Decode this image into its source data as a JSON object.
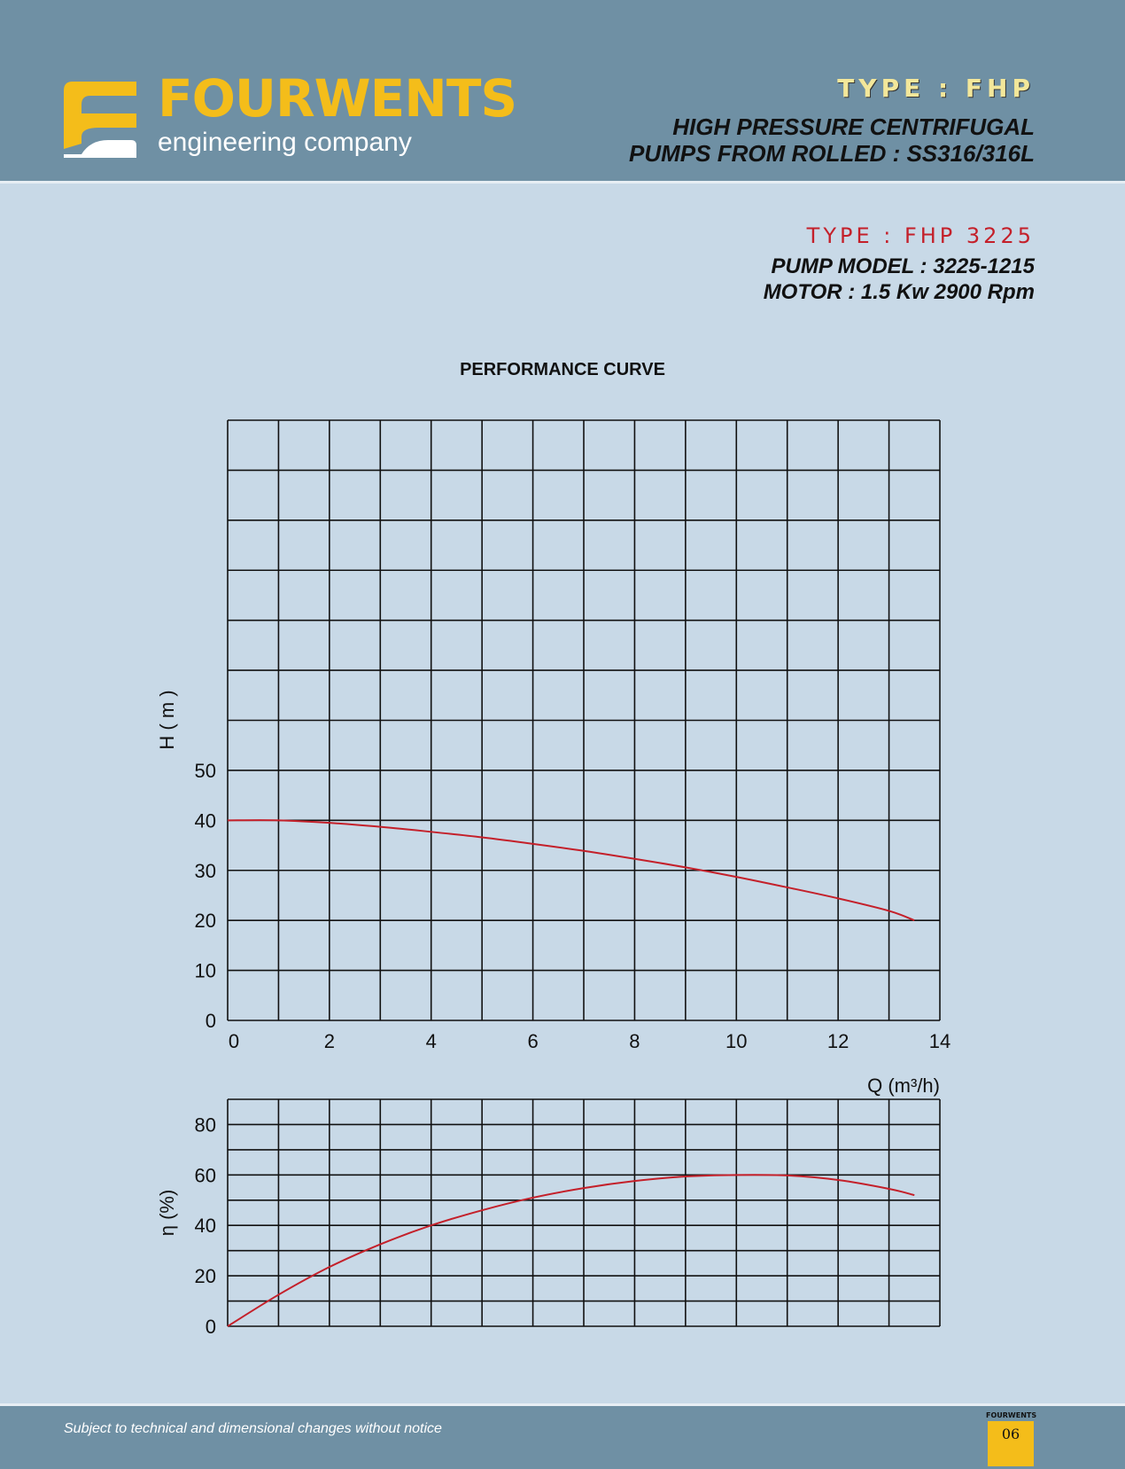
{
  "header": {
    "brand": "FOURWENTS",
    "tagline": "engineering company",
    "type_label": "TYPE : FHP",
    "subtitle_line1": "HIGH PRESSURE CENTRIFUGAL",
    "subtitle_line2": "PUMPS FROM ROLLED : SS316/316L"
  },
  "model": {
    "type_label": "TYPE : FHP 3225",
    "pump_model": "PUMP MODEL : 3225-1215",
    "motor": "MOTOR : 1.5 Kw 2900 Rpm"
  },
  "colors": {
    "curve": "#c4202a",
    "brand": "#f4bd1a",
    "header_bg": "#6f90a4",
    "page_bg": "#c8d9e7"
  },
  "chart_title": "PERFORMANCE CURVE",
  "chart_data": [
    {
      "type": "line",
      "name": "head",
      "xlabel": "Q (m³/h)",
      "ylabel": "H ( m )",
      "xlim": [
        0,
        14
      ],
      "ylim": [
        0,
        120
      ],
      "x_ticks": [
        "0",
        "2",
        "4",
        "6",
        "8",
        "10",
        "12",
        "14"
      ],
      "y_ticks": [
        "0",
        "10",
        "20",
        "30",
        "40",
        "50"
      ],
      "grid": true,
      "series": [
        {
          "x": [
            0,
            1,
            2,
            3,
            4,
            5,
            6,
            7,
            8,
            9,
            10,
            11,
            12,
            13,
            13.5
          ],
          "y": [
            40,
            40,
            39.5,
            38.7,
            37.7,
            36.6,
            35.3,
            33.9,
            32.3,
            30.6,
            28.7,
            26.6,
            24.4,
            21.9,
            20
          ]
        }
      ]
    },
    {
      "type": "line",
      "name": "efficiency",
      "xlabel": "",
      "ylabel": "η (%)",
      "xlim": [
        0,
        14
      ],
      "ylim": [
        0,
        90
      ],
      "y_ticks": [
        "0",
        "20",
        "40",
        "60",
        "80"
      ],
      "grid": true,
      "series": [
        {
          "x": [
            0,
            1,
            2,
            3,
            4,
            5,
            6,
            7,
            8,
            9,
            10,
            11,
            12,
            13,
            13.5
          ],
          "y": [
            0,
            12.5,
            23.5,
            32.5,
            40,
            46,
            51,
            54.8,
            57.6,
            59.4,
            60,
            59.8,
            58,
            54.5,
            52
          ]
        }
      ]
    }
  ],
  "footer": {
    "disclaimer": "Subject to technical and dimensional changes without notice",
    "mini_brand": "FOURWENTS",
    "page_number": "06"
  }
}
